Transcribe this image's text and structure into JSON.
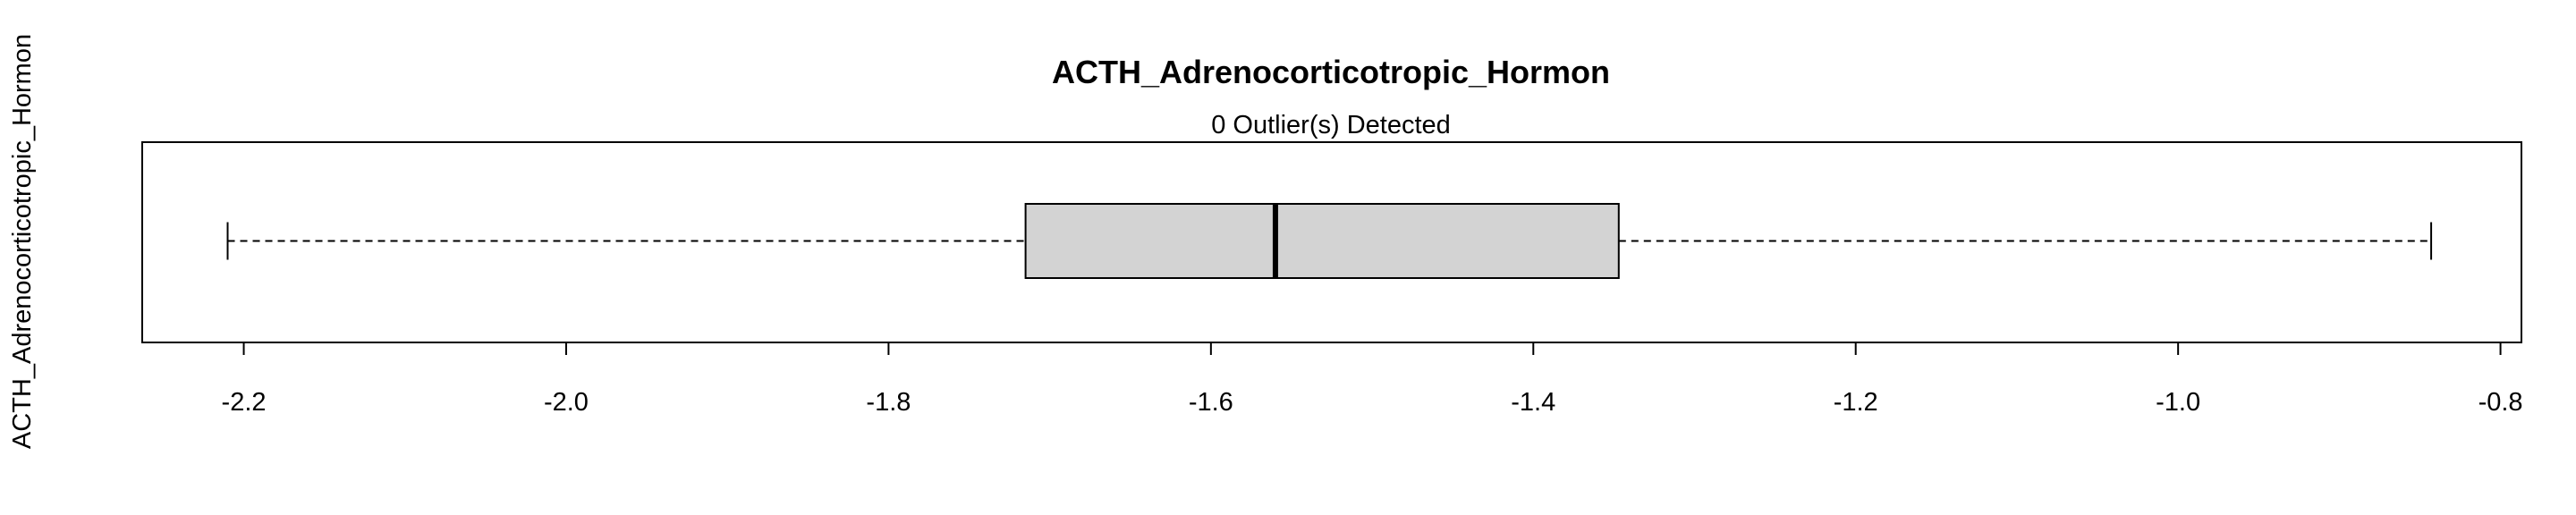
{
  "chart_data": {
    "type": "boxplot",
    "orientation": "horizontal",
    "title": "ACTH_Adrenocorticotropic_Hormon",
    "subtitle": "0 Outlier(s) Detected",
    "ylabel": "ACTH_Adrenocorticotropic_Hormon",
    "xlabel": "",
    "xlim": [
      -2.263,
      -0.787
    ],
    "x_ticks": [
      -2.2,
      -2.0,
      -1.8,
      -1.6,
      -1.4,
      -1.2,
      -1.0,
      -0.8
    ],
    "x_tick_labels": [
      "-2.2",
      "-2.0",
      "-1.8",
      "-1.6",
      "-1.4",
      "-1.2",
      "-1.0",
      "-0.8"
    ],
    "box": {
      "whisker_low": -2.21,
      "q1": -1.715,
      "median": -1.56,
      "q3": -1.347,
      "whisker_high": -0.843
    },
    "outliers": [],
    "box_fill": "#d3d3d3",
    "line_color": "#000000",
    "grid": false
  }
}
